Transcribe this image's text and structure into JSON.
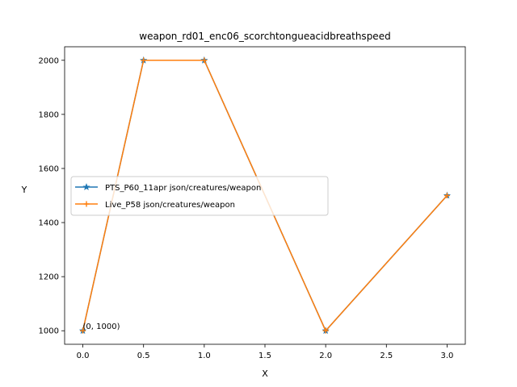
{
  "chart_data": {
    "type": "line",
    "title": "weapon_rd01_enc06_scorchtongueacidbreathspeed",
    "xlabel": "X",
    "ylabel": "Y",
    "xlim": [
      -0.15,
      3.15
    ],
    "ylim": [
      950,
      2050
    ],
    "xticks": [
      0.0,
      0.5,
      1.0,
      1.5,
      2.0,
      2.5,
      3.0
    ],
    "xtick_labels": [
      "0.0",
      "0.5",
      "1.0",
      "1.5",
      "2.0",
      "2.5",
      "3.0"
    ],
    "yticks": [
      1000,
      1200,
      1400,
      1600,
      1800,
      2000
    ],
    "ytick_labels": [
      "1000",
      "1200",
      "1400",
      "1600",
      "1800",
      "2000"
    ],
    "grid": false,
    "legend_position": "center-left",
    "series": [
      {
        "name": "PTS_P60_11apr json/creatures/weapon",
        "color": "#1f77b4",
        "marker": "star",
        "x": [
          0.0,
          0.5,
          1.0,
          2.0,
          3.0
        ],
        "y": [
          1000,
          2000,
          2000,
          1000,
          1500
        ]
      },
      {
        "name": "Live_P58 json/creatures/weapon",
        "color": "#ff7f0e",
        "marker": "plus",
        "x": [
          0.0,
          0.5,
          1.0,
          2.0,
          3.0
        ],
        "y": [
          1000,
          2000,
          2000,
          1000,
          1500
        ]
      }
    ],
    "annotations": [
      {
        "text": "(0, 1000)",
        "x": 0.0,
        "y": 1000
      }
    ]
  }
}
